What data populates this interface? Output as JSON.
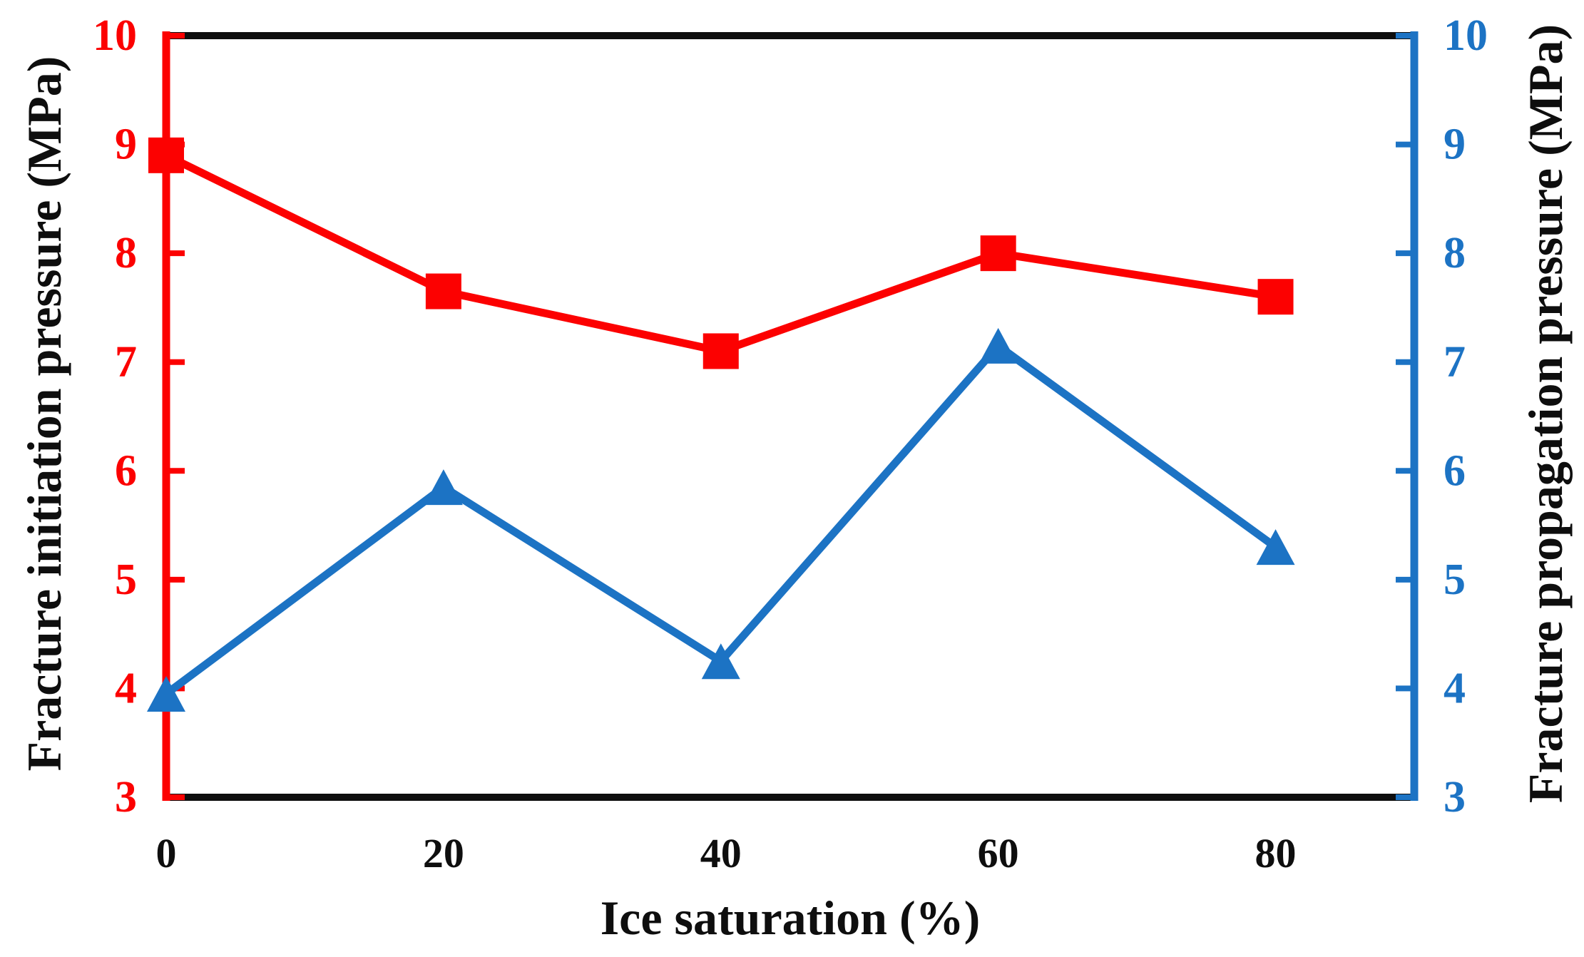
{
  "figure": {
    "background": "#ffffff",
    "frame_color": "#0e0e0e"
  },
  "chart_data": {
    "type": "line",
    "title": "",
    "xlabel": "Ice saturation (%)",
    "xlim": [
      0,
      90
    ],
    "xticks": [
      0,
      20,
      40,
      60,
      80
    ],
    "x": [
      0,
      20,
      40,
      60,
      80
    ],
    "grid": false,
    "legend": null,
    "left_axis": {
      "label": "Fracture initiation pressure (MPa)",
      "color": "#fc0101",
      "range": [
        3,
        10
      ],
      "ticks": [
        3,
        4,
        5,
        6,
        7,
        8,
        9,
        10
      ]
    },
    "right_axis": {
      "label": "Fracture propagation pressure (MPa)",
      "color": "#1c73c4",
      "range": [
        3,
        10
      ],
      "ticks": [
        3,
        4,
        5,
        6,
        7,
        8,
        9,
        10
      ]
    },
    "series": [
      {
        "name": "Fracture initiation pressure",
        "axis": "left",
        "color": "#fc0101",
        "marker": "square",
        "values": [
          8.9,
          7.65,
          7.1,
          8.0,
          7.6
        ]
      },
      {
        "name": "Fracture propagation pressure",
        "axis": "right",
        "color": "#1c73c4",
        "marker": "triangle",
        "values": [
          3.95,
          5.85,
          4.25,
          7.15,
          5.3
        ]
      }
    ]
  }
}
